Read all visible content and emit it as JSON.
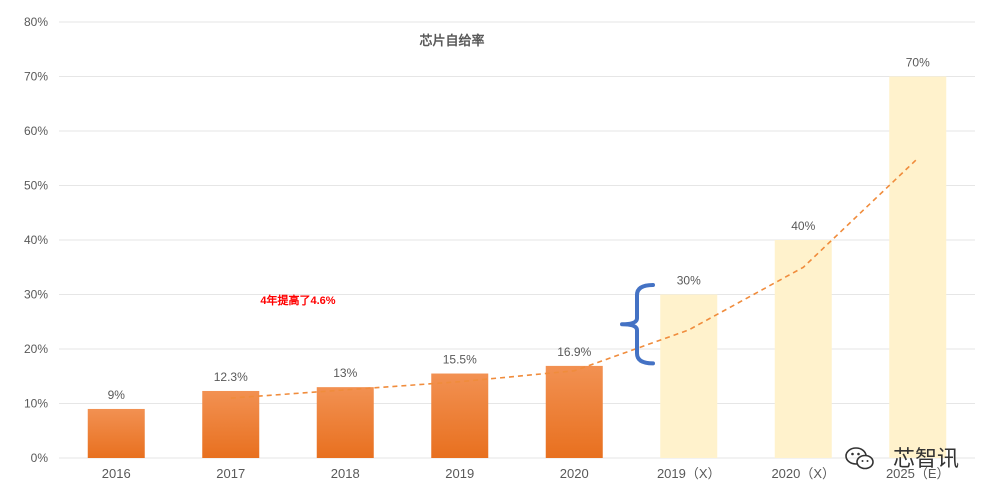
{
  "chart_data": {
    "type": "bar",
    "title": "芯片自给率",
    "categories": [
      "2016",
      "2017",
      "2018",
      "2019",
      "2020",
      "2019（X）",
      "2020（X）",
      "2025（E）"
    ],
    "values": [
      9,
      12.3,
      13,
      15.5,
      16.9,
      30,
      40,
      70
    ],
    "data_labels": [
      "9%",
      "12.3%",
      "13%",
      "15.5%",
      "16.9%",
      "30%",
      "40%",
      "70%"
    ],
    "bar_styles": [
      "actual",
      "actual",
      "actual",
      "actual",
      "actual",
      "forecast",
      "forecast",
      "forecast"
    ],
    "ylim": [
      0,
      80
    ],
    "ytick_values": [
      0,
      10,
      20,
      30,
      40,
      50,
      60,
      70,
      80
    ],
    "yticks": [
      "0%",
      "10%",
      "20%",
      "30%",
      "40%",
      "50%",
      "60%",
      "70%",
      "80%"
    ],
    "xlabel": "",
    "ylabel": "",
    "grid": true,
    "trendline": {
      "style": "dashed",
      "color": "#f08c3c",
      "values": [
        null,
        11,
        12.5,
        14,
        16,
        23.5,
        35,
        55
      ]
    },
    "annotations": [
      {
        "text": "4年提高了4.6%",
        "color": "#ff0000"
      }
    ],
    "brace": {
      "color": "#4472c4",
      "range": [
        17,
        31
      ]
    },
    "colors": {
      "actual_top": "#f29152",
      "actual_bottom": "#e8701f",
      "forecast": "#fff2cc"
    }
  },
  "watermark": {
    "text": "芯智讯",
    "icon": "wechat-icon"
  }
}
